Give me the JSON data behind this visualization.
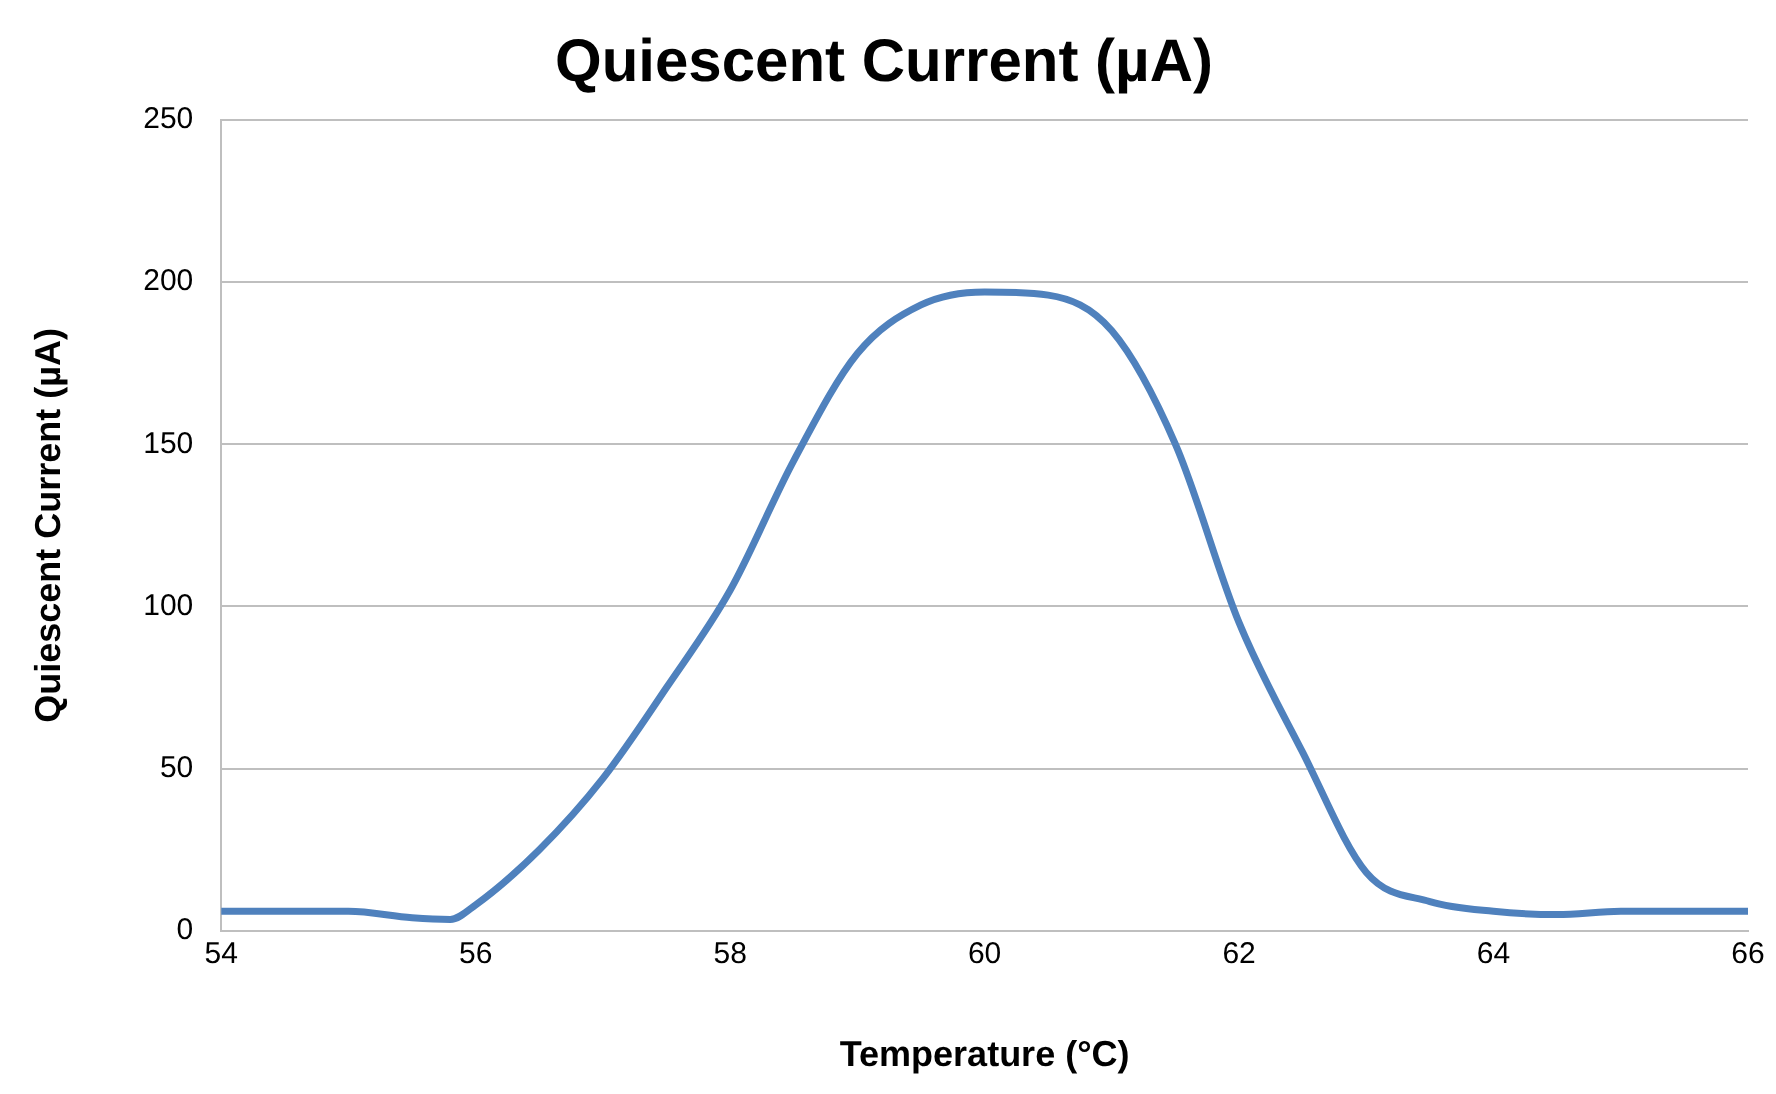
{
  "chart_data": {
    "type": "line",
    "title": "Quiescent Current (µA)",
    "xlabel": "Temperature (°C)",
    "ylabel": "Quiescent Current (µA)",
    "x": [
      54,
      55,
      55.5,
      55.8,
      56,
      56.5,
      57,
      57.5,
      58,
      58.5,
      59,
      59.5,
      60,
      60.5,
      61,
      61.5,
      62,
      62.5,
      63,
      63.5,
      64,
      64.5,
      65,
      66
    ],
    "series": [
      {
        "color": "#4f81bd",
        "values": [
          6,
          6,
          4,
          3.5,
          8,
          25,
          47,
          75,
          105,
          145,
          178,
          193,
          197,
          196,
          185,
          150,
          95,
          55,
          18,
          9,
          6,
          5,
          6,
          6
        ]
      }
    ],
    "xlim": [
      54,
      66
    ],
    "xticks": [
      54,
      56,
      58,
      60,
      62,
      64,
      66
    ],
    "ylim": [
      0,
      250
    ],
    "yticks": [
      0,
      50,
      100,
      150,
      200,
      250
    ],
    "grid": "y",
    "legend": false,
    "marker": "none",
    "line_style": "solid"
  }
}
